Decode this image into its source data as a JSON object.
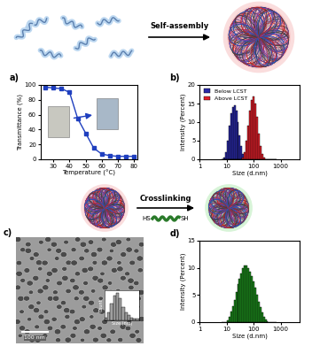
{
  "chart_data": [
    {
      "type": "line",
      "title": "a)",
      "xlabel": "Temperature (°C)",
      "ylabel": "Transmittance (%)",
      "x": [
        25,
        30,
        35,
        40,
        45,
        50,
        55,
        60,
        65,
        70,
        75,
        80
      ],
      "series": [
        {
          "color": "#1f3fbf",
          "marker": "square",
          "line_style": "solid",
          "values": [
            97,
            96,
            95,
            90,
            55,
            35,
            15,
            7,
            5,
            4,
            4,
            4
          ]
        }
      ],
      "xlim": [
        22,
        82
      ],
      "xticks": [
        30,
        40,
        50,
        60,
        70,
        80
      ],
      "ylim": [
        0,
        100
      ],
      "yticks": [
        0,
        20,
        40,
        60,
        80,
        100
      ]
    },
    {
      "type": "histogram",
      "title": "b)",
      "xlabel": "Size (d.nm)",
      "ylabel": "Intensity (Percent)",
      "log": "x",
      "bins": [
        6.5,
        7.5,
        8.7,
        10.1,
        11.7,
        13.5,
        15.7,
        18.2,
        21.0,
        24.4,
        28.2,
        32.7,
        37.8,
        43.8,
        50.7,
        58.8,
        68.1,
        78.8,
        91.3,
        105.7,
        122.4,
        141.8,
        164.2,
        190.1,
        220.2,
        255.0,
        295.3,
        342.0,
        396.1,
        458.7,
        531.2,
        615.1,
        712.4
      ],
      "series": [
        {
          "name": "Below LCST",
          "color": "#2a2aa8",
          "values": [
            0,
            0.5,
            2,
            5,
            9,
            12.5,
            14,
            14.5,
            13,
            10,
            6.5,
            3.5,
            1.5,
            0.5,
            0,
            0,
            0,
            0,
            1.5,
            2,
            1,
            0,
            0,
            0,
            0,
            0,
            0,
            0,
            0,
            0,
            0,
            0
          ]
        },
        {
          "name": "Above LCST",
          "color": "#e0202a",
          "values": [
            0,
            0,
            0,
            0,
            0,
            0,
            0,
            0,
            0,
            0,
            0,
            0,
            0.5,
            2,
            5,
            9,
            13,
            16,
            17,
            15,
            11.5,
            7,
            3.5,
            1.5,
            0.5,
            0,
            0,
            0,
            0,
            0,
            0,
            0
          ]
        }
      ],
      "xlim": [
        1,
        5000
      ],
      "xticks": [
        1,
        10,
        100,
        1000
      ],
      "ylim": [
        0,
        20
      ],
      "yticks": [
        0,
        5,
        10,
        15,
        20
      ],
      "legend": "upper left"
    },
    {
      "type": "histogram",
      "title": "c)",
      "xlabel": "Size (nm)",
      "ylabel": "Count",
      "bins": [
        20,
        25,
        30,
        35,
        40,
        45,
        50,
        55,
        60,
        65,
        70,
        75,
        80
      ],
      "values": [
        1,
        3,
        6,
        9,
        10,
        8,
        5,
        3,
        2,
        1,
        0.5,
        0.5
      ],
      "color": "#a0a0a0",
      "xlim": [
        20,
        80
      ],
      "ylim": [
        0,
        11
      ],
      "tick_labels": false,
      "annotations": [
        "100 nm"
      ]
    },
    {
      "type": "histogram",
      "title": "d)",
      "xlabel": "Size (d.nm)",
      "ylabel": "Intensity (Percent)",
      "log": "x",
      "bins": [
        6.5,
        7.5,
        8.7,
        10.1,
        11.7,
        13.5,
        15.7,
        18.2,
        21.0,
        24.4,
        28.2,
        32.7,
        37.8,
        43.8,
        50.7,
        58.8,
        68.1,
        78.8,
        91.3,
        105.7,
        122.4,
        141.8,
        164.2,
        190.1,
        220.2,
        255.0,
        295.3,
        342.0,
        396.1,
        458.7,
        531.2,
        615.1,
        712.4
      ],
      "series": [
        {
          "color": "#1e8c1e",
          "values": [
            0,
            0,
            0,
            0.3,
            1,
            2,
            3,
            4,
            5.5,
            7,
            8,
            9,
            10,
            10.5,
            10.5,
            10,
            9.3,
            8.5,
            7.5,
            6.3,
            5,
            3.8,
            2.7,
            1.8,
            1,
            0.5,
            0.2,
            0,
            0,
            0,
            0,
            0
          ]
        }
      ],
      "xlim": [
        1,
        5000
      ],
      "xticks": [
        1,
        10,
        100,
        1000
      ],
      "ylim": [
        0,
        15
      ],
      "yticks": [
        0,
        5,
        10,
        15
      ]
    }
  ],
  "diagram": {
    "steps": [
      "Self-assembly",
      "Crosslinking"
    ],
    "linker": [
      "HS",
      "SH"
    ]
  }
}
